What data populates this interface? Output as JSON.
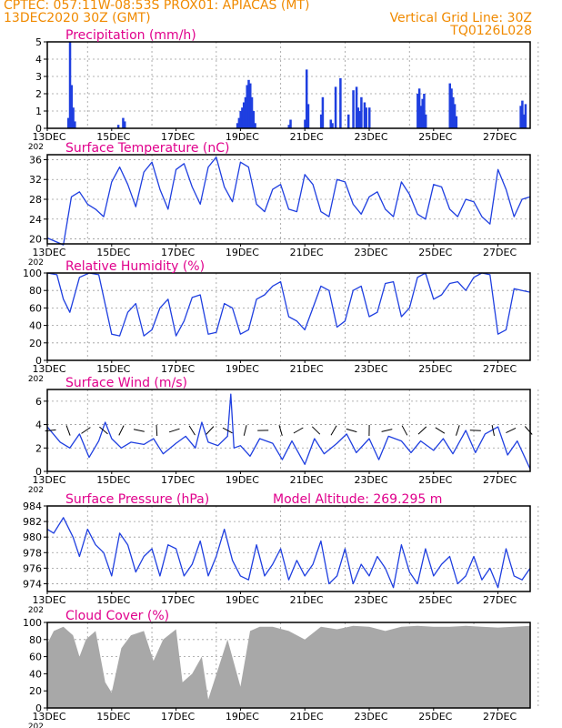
{
  "header": {
    "line1_left": "CPTEC:   057:11W-08:53S   PROX01: APIACAS (MT)",
    "line2_left": "13DEC2020 30Z (GMT)",
    "line2_right": "Vertical Grid Line: 30Z",
    "line3_right": "TQ0126L028"
  },
  "colors": {
    "header": "#f08a00",
    "title": "#e0008c",
    "line": "#1f3fe0",
    "bar": "#1f3fe0",
    "cloud": "#a8a8a8",
    "grid": "#9a9a9a"
  },
  "x_axis": {
    "days": [
      "13DEC",
      "15DEC",
      "17DEC",
      "19DEC",
      "21DEC",
      "23DEC",
      "25DEC",
      "27DEC"
    ],
    "start_label_extra": "202",
    "range_days": [
      13,
      28
    ]
  },
  "chart_data": [
    {
      "type": "bar",
      "title": "Precipitation (mm/h)",
      "ylim": [
        0,
        5
      ],
      "yticks": [
        "0",
        "1",
        "2",
        "3",
        "4",
        "5"
      ],
      "x": [
        13.65,
        13.7,
        13.75,
        13.8,
        13.85,
        15.2,
        15.35,
        15.4,
        18.9,
        18.95,
        19.0,
        19.05,
        19.1,
        19.15,
        19.2,
        19.25,
        19.3,
        19.35,
        19.4,
        19.45,
        20.5,
        20.55,
        21.0,
        21.05,
        21.1,
        21.5,
        21.55,
        21.8,
        21.85,
        21.95,
        22.1,
        22.35,
        22.5,
        22.6,
        22.65,
        22.7,
        22.75,
        22.85,
        22.9,
        23.0,
        24.5,
        24.55,
        24.6,
        24.65,
        24.7,
        24.75,
        25.5,
        25.55,
        25.6,
        25.65,
        25.7,
        27.7,
        27.75,
        27.8,
        27.85
      ],
      "values": [
        0.6,
        5.0,
        2.5,
        1.2,
        0.4,
        0.2,
        0.6,
        0.4,
        0.3,
        0.6,
        1.0,
        1.2,
        1.5,
        1.8,
        2.5,
        2.8,
        2.6,
        1.8,
        1.0,
        0.3,
        0.2,
        0.5,
        0.5,
        3.4,
        1.4,
        0.8,
        1.8,
        0.5,
        0.3,
        2.4,
        2.9,
        0.8,
        2.2,
        2.4,
        1.2,
        1.0,
        1.8,
        1.5,
        1.2,
        1.2,
        2.0,
        2.3,
        1.3,
        1.7,
        2.0,
        0.8,
        2.6,
        2.3,
        1.8,
        1.4,
        0.7,
        1.3,
        1.6,
        0.8,
        1.4
      ]
    },
    {
      "type": "line",
      "title": "Surface Temperature (nC)",
      "ylim": [
        19,
        37
      ],
      "yticks": [
        "20",
        "24",
        "28",
        "32",
        "36"
      ],
      "x": [
        13.0,
        13.5,
        13.75,
        14.0,
        14.25,
        14.5,
        14.75,
        15.0,
        15.25,
        15.5,
        15.75,
        16.0,
        16.25,
        16.5,
        16.75,
        17.0,
        17.25,
        17.5,
        17.75,
        18.0,
        18.25,
        18.5,
        18.75,
        19.0,
        19.25,
        19.5,
        19.75,
        20.0,
        20.25,
        20.5,
        20.75,
        21.0,
        21.25,
        21.5,
        21.75,
        22.0,
        22.25,
        22.5,
        22.75,
        23.0,
        23.25,
        23.5,
        23.75,
        24.0,
        24.25,
        24.5,
        24.75,
        25.0,
        25.25,
        25.5,
        25.75,
        26.0,
        26.25,
        26.5,
        26.75,
        27.0,
        27.25,
        27.5,
        27.75,
        28.0
      ],
      "values": [
        20.2,
        18.8,
        28.5,
        29.5,
        27.0,
        26.0,
        24.5,
        31.5,
        34.5,
        31.0,
        26.5,
        33.5,
        35.5,
        30.0,
        26.0,
        34.0,
        35.2,
        30.5,
        27.0,
        34.5,
        36.5,
        30.5,
        27.5,
        35.5,
        34.5,
        27.0,
        25.5,
        30.0,
        31.0,
        26.0,
        25.5,
        33.0,
        31.0,
        25.5,
        24.5,
        32.0,
        31.5,
        27.0,
        25.0,
        28.5,
        29.5,
        26.0,
        24.5,
        31.5,
        29.0,
        25.0,
        24.0,
        31.0,
        30.5,
        26.0,
        24.5,
        28.0,
        27.5,
        24.5,
        23.0,
        34.0,
        30.0,
        24.5,
        28.0,
        28.5
      ]
    },
    {
      "type": "line",
      "title": "Relative Humidity (%)",
      "ylim": [
        0,
        100
      ],
      "yticks": [
        "0",
        "20",
        "40",
        "60",
        "80",
        "100"
      ],
      "x": [
        13.0,
        13.3,
        13.5,
        13.7,
        14.0,
        14.3,
        14.6,
        15.0,
        15.25,
        15.5,
        15.75,
        16.0,
        16.25,
        16.5,
        16.75,
        17.0,
        17.25,
        17.5,
        17.75,
        18.0,
        18.25,
        18.5,
        18.75,
        19.0,
        19.25,
        19.5,
        19.75,
        20.0,
        20.25,
        20.5,
        20.75,
        21.0,
        21.25,
        21.5,
        21.75,
        22.0,
        22.25,
        22.5,
        22.75,
        23.0,
        23.25,
        23.5,
        23.75,
        24.0,
        24.25,
        24.5,
        24.75,
        25.0,
        25.25,
        25.5,
        25.75,
        26.0,
        26.25,
        26.5,
        26.75,
        27.0,
        27.25,
        27.5,
        27.75,
        28.0
      ],
      "values": [
        100,
        98,
        70,
        55,
        95,
        100,
        98,
        30,
        28,
        55,
        65,
        28,
        35,
        60,
        70,
        28,
        45,
        72,
        75,
        30,
        32,
        65,
        60,
        30,
        35,
        70,
        75,
        85,
        90,
        50,
        45,
        35,
        60,
        85,
        80,
        38,
        45,
        80,
        85,
        50,
        55,
        88,
        90,
        50,
        60,
        95,
        100,
        70,
        75,
        88,
        90,
        80,
        95,
        100,
        98,
        30,
        35,
        82,
        80,
        78
      ]
    },
    {
      "type": "line",
      "title": "Surface Wind (m/s)",
      "ylim": [
        0,
        7
      ],
      "yticks": [
        "0",
        "2",
        "4",
        "6"
      ],
      "x": [
        13.0,
        13.4,
        13.7,
        14.0,
        14.3,
        14.6,
        14.8,
        15.0,
        15.3,
        15.6,
        16.0,
        16.3,
        16.6,
        17.0,
        17.3,
        17.6,
        17.8,
        18.0,
        18.3,
        18.6,
        18.7,
        18.8,
        19.0,
        19.3,
        19.6,
        20.0,
        20.3,
        20.6,
        21.0,
        21.3,
        21.6,
        22.0,
        22.3,
        22.6,
        23.0,
        23.3,
        23.6,
        24.0,
        24.3,
        24.6,
        25.0,
        25.3,
        25.6,
        26.0,
        26.3,
        26.6,
        27.0,
        27.3,
        27.6,
        28.0
      ],
      "values": [
        3.8,
        2.5,
        2.0,
        3.2,
        1.2,
        2.6,
        4.2,
        2.8,
        2.0,
        2.5,
        2.3,
        2.8,
        1.5,
        2.4,
        3.0,
        2.0,
        4.2,
        2.5,
        2.2,
        3.0,
        6.6,
        2.0,
        2.2,
        1.3,
        2.8,
        2.4,
        1.0,
        2.6,
        0.6,
        2.8,
        1.5,
        2.4,
        3.2,
        1.6,
        2.8,
        1.0,
        3.0,
        2.6,
        1.6,
        2.6,
        1.8,
        2.8,
        1.5,
        3.5,
        1.6,
        3.2,
        3.8,
        1.4,
        2.6,
        0.2
      ]
    },
    {
      "type": "line",
      "title": "Surface Pressure (hPa)",
      "annotation": "Model Altitude: 269.295 m",
      "ylim": [
        973,
        984
      ],
      "yticks": [
        "974",
        "976",
        "978",
        "980",
        "982",
        "984"
      ],
      "x": [
        13.0,
        13.2,
        13.5,
        13.8,
        14.0,
        14.25,
        14.5,
        14.75,
        15.0,
        15.25,
        15.5,
        15.75,
        16.0,
        16.25,
        16.5,
        16.75,
        17.0,
        17.25,
        17.5,
        17.75,
        18.0,
        18.25,
        18.5,
        18.75,
        19.0,
        19.25,
        19.5,
        19.75,
        20.0,
        20.25,
        20.5,
        20.75,
        21.0,
        21.25,
        21.5,
        21.75,
        22.0,
        22.25,
        22.5,
        22.75,
        23.0,
        23.25,
        23.5,
        23.75,
        24.0,
        24.25,
        24.5,
        24.75,
        25.0,
        25.25,
        25.5,
        25.75,
        26.0,
        26.25,
        26.5,
        26.75,
        27.0,
        27.25,
        27.5,
        27.75,
        28.0
      ],
      "values": [
        981.0,
        980.5,
        982.5,
        980.0,
        977.5,
        981.0,
        979.0,
        978.0,
        975.0,
        980.5,
        979.0,
        975.5,
        977.5,
        978.5,
        975.0,
        979.0,
        978.5,
        975.0,
        976.5,
        979.5,
        975.0,
        977.5,
        981.0,
        977.0,
        975.0,
        974.5,
        979.0,
        975.0,
        976.5,
        978.5,
        974.5,
        977.0,
        975.0,
        976.5,
        979.5,
        974.0,
        975.0,
        978.5,
        974.0,
        976.5,
        975.0,
        977.5,
        976.0,
        973.5,
        979.0,
        975.5,
        974.0,
        978.5,
        975.0,
        976.5,
        977.5,
        974.0,
        975.0,
        977.5,
        974.5,
        976.0,
        973.5,
        978.5,
        975.0,
        974.5,
        976.0
      ]
    },
    {
      "type": "area",
      "title": "Cloud Cover (%)",
      "ylim": [
        0,
        100
      ],
      "yticks": [
        "0",
        "20",
        "40",
        "60",
        "80",
        "100"
      ],
      "x": [
        13.0,
        13.2,
        13.5,
        13.8,
        14.0,
        14.2,
        14.5,
        14.8,
        15.0,
        15.3,
        15.6,
        16.0,
        16.3,
        16.6,
        17.0,
        17.2,
        17.5,
        17.8,
        18.0,
        18.3,
        18.6,
        19.0,
        19.3,
        19.6,
        20.0,
        20.5,
        21.0,
        21.5,
        22.0,
        22.5,
        23.0,
        23.5,
        24.0,
        24.5,
        25.0,
        25.5,
        26.0,
        26.5,
        27.0,
        27.5,
        28.0
      ],
      "values": [
        75,
        90,
        95,
        85,
        60,
        80,
        90,
        30,
        18,
        70,
        85,
        90,
        55,
        80,
        92,
        30,
        40,
        60,
        10,
        45,
        80,
        25,
        90,
        95,
        95,
        90,
        80,
        95,
        92,
        96,
        95,
        90,
        95,
        96,
        95,
        95,
        96,
        95,
        94,
        95,
        96
      ]
    }
  ]
}
